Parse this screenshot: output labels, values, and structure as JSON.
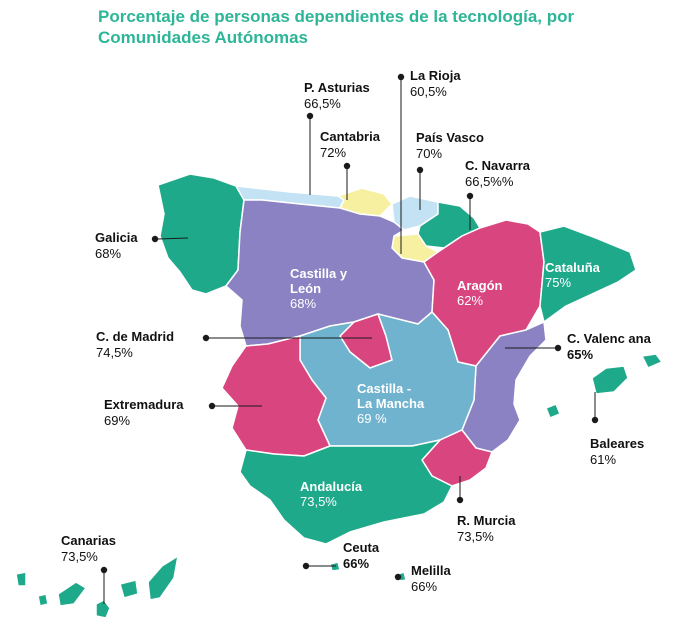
{
  "title": "Porcentaje de personas dependientes de la tecnología, por Comunidades Autónomas",
  "colors": {
    "teal": "#1fa98b",
    "lavender": "#8a82c2",
    "pink": "#d9457e",
    "lightblue": "#6fb3cf",
    "paleblue": "#c3e2f3",
    "yellow": "#f6f0a0"
  },
  "regions": {
    "asturias": {
      "name": "P. Asturias",
      "value": "66,5%"
    },
    "rioja": {
      "name": "La  Rioja",
      "value": "60,5%"
    },
    "cantabria": {
      "name": "Cantabria",
      "value": "72%"
    },
    "paisvasco": {
      "name": "País Vasco",
      "value": "70%"
    },
    "navarra": {
      "name": "C. Navarra",
      "value": "66,5%%"
    },
    "galicia": {
      "name": "Galicia",
      "value": "68%"
    },
    "castillaleon": {
      "name": "Castilla y\nLeón",
      "value": "68%"
    },
    "aragon": {
      "name": "Aragón",
      "value": "62%"
    },
    "cataluna": {
      "name": "Cataluña",
      "value": "75%"
    },
    "madrid": {
      "name": "C. de Madrid",
      "value": "74,5%"
    },
    "valenciana": {
      "name": "C. Valenc ana",
      "value": "65%"
    },
    "extremadura": {
      "name": "Extremadura",
      "value": "69%"
    },
    "castillamancha": {
      "name": "Castilla -\nLa Mancha",
      "value": "69 %"
    },
    "baleares": {
      "name": "Baleares",
      "value": "61%"
    },
    "andalucia": {
      "name": "Andalucía",
      "value": "73,5%"
    },
    "murcia": {
      "name": "R. Murcia",
      "value": "73,5%"
    },
    "canarias": {
      "name": "Canarias",
      "value": "73,5%"
    },
    "ceuta": {
      "name": "Ceuta",
      "value": "66%"
    },
    "melilla": {
      "name": "Melilla",
      "value": "66%"
    }
  }
}
